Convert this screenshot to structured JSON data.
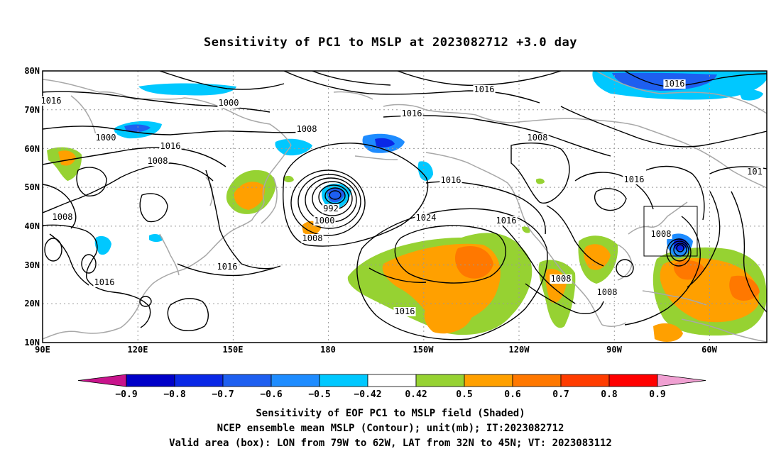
{
  "title": "Sensitivity of PC1 to MSLP at 2023082712 +3.0 day",
  "map": {
    "lat_ticks": [
      "80N",
      "70N",
      "60N",
      "50N",
      "40N",
      "30N",
      "20N",
      "10N"
    ],
    "lon_ticks": [
      "90E",
      "120E",
      "150E",
      "180",
      "150W",
      "120W",
      "90W",
      "60W"
    ],
    "valid_area_box": {
      "lon_min": "79W",
      "lon_max": "62W",
      "lat_min": "32N",
      "lat_max": "45N"
    },
    "contour_labels": [
      "1016",
      "1000",
      "1016",
      "1008",
      "1008",
      "1000",
      "1016",
      "1016",
      "1016",
      "1008",
      "992",
      "1000",
      "1008",
      "1024",
      "1016",
      "1016",
      "1008",
      "1016",
      "1008",
      "1016",
      "1016",
      "1008",
      "1016",
      "101",
      "1008"
    ],
    "colors": {
      "land": "#a8a8a8",
      "contour": "#000000",
      "grid": "#999999"
    }
  },
  "colorbar": {
    "labels": [
      "−0.9",
      "−0.8",
      "−0.7",
      "−0.6",
      "−0.5",
      "−0.42",
      "0.42",
      "0.5",
      "0.6",
      "0.7",
      "0.8",
      "0.9"
    ],
    "colors": [
      "#c8148c",
      "#0000c8",
      "#0a28e6",
      "#1e5ff0",
      "#1e8cff",
      "#00c8ff",
      "#ffffff",
      "#96d232",
      "#ffa000",
      "#ff7800",
      "#ff3c00",
      "#ff0000",
      "#f0a0d2"
    ]
  },
  "captions": [
    "Sensitivity of EOF PC1 to MSLP field (Shaded)",
    "NCEP ensemble mean MSLP (Contour); unit(mb); IT:2023082712",
    "Valid area (box): LON from 79W to 62W, LAT from 32N to 45N; VT: 2023083112"
  ]
}
